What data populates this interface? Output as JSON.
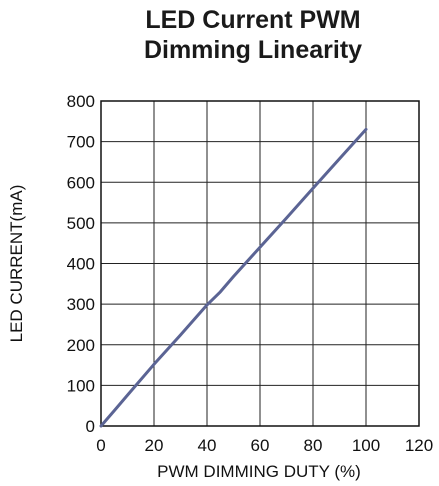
{
  "chart_data": {
    "type": "line",
    "title_lines": [
      "LED Current PWM",
      "Dimming Linearity"
    ],
    "xlabel": "PWM DIMMING DUTY (%)",
    "ylabel": "LED CURRENT(mA)",
    "xlim": [
      0,
      120
    ],
    "ylim": [
      0,
      800
    ],
    "x_ticks": [
      0,
      20,
      40,
      60,
      80,
      100,
      120
    ],
    "y_ticks": [
      0,
      100,
      200,
      300,
      400,
      500,
      600,
      700,
      800
    ],
    "grid": true,
    "series": [
      {
        "color": "#5b6494",
        "x": [
          0,
          5,
          10,
          20,
          30,
          40,
          45,
          50,
          60,
          70,
          80,
          90,
          100
        ],
        "y": [
          0,
          38,
          76,
          152,
          224,
          298,
          330,
          368,
          440,
          512,
          585,
          658,
          730
        ]
      }
    ]
  }
}
